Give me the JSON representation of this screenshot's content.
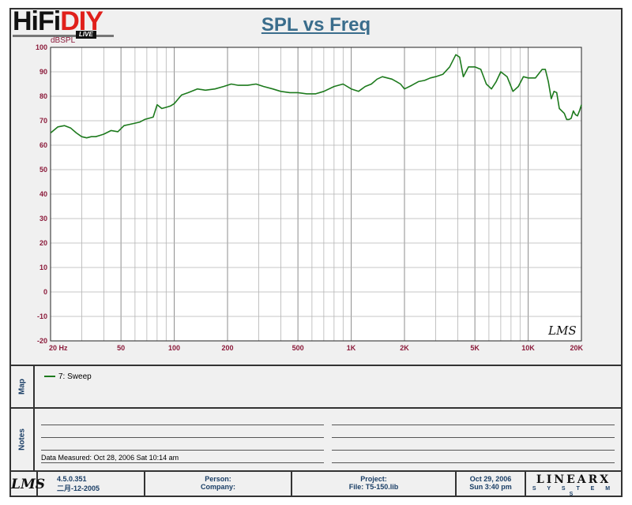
{
  "header": {
    "logo_hifi": "HiFi",
    "logo_diy": "DIY",
    "logo_live": "LIVE",
    "title": "SPL vs Freq",
    "y_unit": "dBSPL"
  },
  "watermark": "LMS",
  "chart_data": {
    "type": "line",
    "title": "SPL vs Freq",
    "xlabel": "",
    "ylabel": "dBSPL",
    "x_scale": "log",
    "xlim": [
      20,
      20000
    ],
    "ylim": [
      -20,
      100
    ],
    "grid": true,
    "x_ticks": [
      20,
      50,
      100,
      200,
      500,
      1000,
      2000,
      5000,
      10000,
      20000
    ],
    "x_tick_labels": [
      "20  Hz",
      "50",
      "100",
      "200",
      "500",
      "1K",
      "2K",
      "5K",
      "10K",
      "20K"
    ],
    "y_ticks": [
      -20,
      -10,
      0,
      10,
      20,
      30,
      40,
      50,
      60,
      70,
      80,
      90,
      100
    ],
    "y_tick_labels": [
      "-20",
      "-10",
      "0",
      "10",
      "20",
      "30",
      "40",
      "50",
      "60",
      "70",
      "80",
      "90",
      "100"
    ],
    "series": [
      {
        "name": "7: Sweep",
        "color": "#1d7a1d",
        "x": [
          20,
          22,
          24,
          26,
          28,
          30,
          32,
          34,
          36,
          38,
          40,
          44,
          48,
          52,
          56,
          60,
          64,
          68,
          72,
          76,
          80,
          85,
          90,
          95,
          100,
          110,
          120,
          135,
          150,
          170,
          190,
          210,
          230,
          260,
          290,
          320,
          360,
          400,
          450,
          500,
          560,
          630,
          700,
          800,
          900,
          1000,
          1100,
          1200,
          1300,
          1400,
          1500,
          1600,
          1700,
          1800,
          1900,
          2000,
          2200,
          2400,
          2600,
          2800,
          3000,
          3300,
          3600,
          3900,
          4100,
          4300,
          4600,
          5000,
          5400,
          5800,
          6200,
          6600,
          7000,
          7600,
          8200,
          8800,
          9400,
          10000,
          11000,
          12000,
          12500,
          13000,
          13500,
          14000,
          14500,
          15000,
          16000,
          16500,
          17000,
          17500,
          18000,
          18500,
          19000,
          19500,
          20000
        ],
        "y": [
          65,
          67.5,
          68,
          67,
          65,
          63.5,
          63,
          63.5,
          63.5,
          64,
          64.5,
          66,
          65.5,
          68,
          68.5,
          69,
          69.5,
          70.5,
          71,
          71.5,
          76.5,
          75,
          75.5,
          76,
          77,
          80.5,
          81.5,
          83,
          82.5,
          83,
          84,
          85,
          84.5,
          84.5,
          85,
          84,
          83,
          82,
          81.5,
          81.5,
          81,
          81,
          82,
          84,
          85,
          83,
          82,
          84,
          85,
          87,
          88,
          87.5,
          87,
          86,
          85,
          83,
          84.5,
          86,
          86.5,
          87.5,
          88,
          89,
          92,
          97,
          96,
          88,
          92,
          92,
          91,
          85,
          83,
          86,
          90,
          88,
          82,
          84,
          88,
          87.5,
          87.5,
          91,
          91,
          86,
          79,
          82,
          81.5,
          75,
          73,
          70.5,
          70.5,
          71,
          74,
          72.5,
          72,
          74,
          76.5
        ]
      }
    ]
  },
  "map_panel": {
    "label": "Map",
    "legend_entry": "7: Sweep"
  },
  "notes_panel": {
    "label": "Notes",
    "data_measured": "Data Measured: Oct 28, 2006  Sat 10:14 am"
  },
  "footer": {
    "lms_logo": "LMS",
    "version": "4.5.0.351",
    "build_date": "二月-12-2005",
    "person_label": "Person:",
    "company_label": "Company:",
    "project_label": "Project:",
    "file_label": "File: T5-150.lib",
    "date": "Oct 29, 2006",
    "day_time": "Sun  3:40 pm",
    "brand": "LINEARX",
    "brand_sub": "S Y S T E M S"
  }
}
